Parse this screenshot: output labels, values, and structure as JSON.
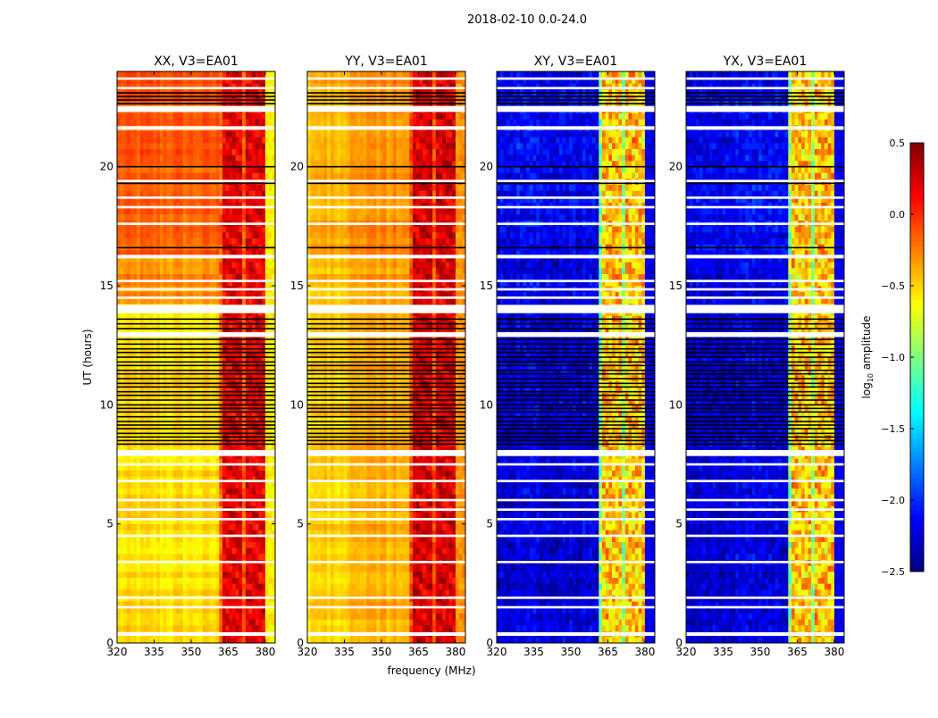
{
  "chart_data": {
    "type": "heatmap",
    "title": "2018-02-10 0.0-24.0",
    "xlabel": "frequency (MHz)",
    "ylabel": "UT (hours)",
    "xlim": [
      320,
      384
    ],
    "ylim": [
      0,
      24
    ],
    "xticks": [
      "320",
      "335",
      "350",
      "365",
      "380"
    ],
    "xtick_values": [
      320,
      335,
      350,
      365,
      380
    ],
    "yticks": [
      "0",
      "5",
      "10",
      "15",
      "20"
    ],
    "ytick_values": [
      0,
      5,
      10,
      15,
      20
    ],
    "colorbar": {
      "label": "log",
      "label_sub": "10",
      "label_rest": " amplitude",
      "colormap": "jet",
      "range": [
        -2.5,
        0.5
      ],
      "ticks": [
        "0.5",
        "0.0",
        "−0.5",
        "−1.0",
        "−1.5",
        "−2.0",
        "−2.5"
      ],
      "tick_values": [
        0.5,
        0.0,
        -0.5,
        -1.0,
        -1.5,
        -2.0,
        -2.5
      ]
    },
    "flagged_white_hours": [
      [
        0.3,
        0.45
      ],
      [
        1.45,
        1.55
      ],
      [
        1.85,
        1.95
      ],
      [
        3.35,
        3.45
      ],
      [
        4.45,
        4.55
      ],
      [
        5.15,
        5.25
      ],
      [
        5.55,
        5.65
      ],
      [
        5.95,
        6.05
      ],
      [
        6.75,
        6.85
      ],
      [
        7.45,
        7.55
      ],
      [
        7.85,
        8.1
      ],
      [
        12.85,
        13.05
      ],
      [
        13.85,
        14.2
      ],
      [
        14.45,
        14.55
      ],
      [
        14.8,
        14.9
      ],
      [
        15.15,
        15.25
      ],
      [
        16.15,
        16.3
      ],
      [
        17.55,
        17.65
      ],
      [
        18.25,
        18.35
      ],
      [
        18.65,
        18.75
      ],
      [
        19.35,
        19.45
      ],
      [
        21.55,
        21.7
      ],
      [
        22.3,
        22.55
      ],
      [
        23.25,
        23.35
      ],
      [
        23.65,
        23.75
      ]
    ],
    "flagged_black_hours": [
      8.35,
      8.5,
      8.65,
      8.8,
      9.0,
      9.15,
      9.3,
      9.5,
      9.7,
      9.85,
      10.0,
      10.2,
      10.4,
      10.55,
      10.75,
      10.9,
      11.1,
      11.3,
      11.45,
      11.65,
      11.8,
      12.0,
      12.2,
      12.35,
      12.55,
      12.75,
      13.2,
      13.4,
      13.6,
      16.6,
      19.3,
      20.0,
      22.65,
      22.8,
      22.95,
      23.1
    ],
    "panels": [
      {
        "title": "XX, V3=EA01",
        "low_band": [
          -0.55,
          -0.3,
          -0.15
        ],
        "high_band": 0.2,
        "edge": -0.6
      },
      {
        "title": "YY, V3=EA01",
        "low_band": [
          -0.35,
          -0.3,
          -0.25
        ],
        "high_band": 0.25,
        "edge": -0.3
      },
      {
        "title": "XY, V3=EA01",
        "low_band": [
          -2.25,
          -2.2,
          -2.15
        ],
        "high_band": -0.45,
        "edge": -2.2
      },
      {
        "title": "YX, V3=EA01",
        "low_band": [
          -2.25,
          -2.2,
          -2.15
        ],
        "high_band": -0.45,
        "edge": -2.2
      }
    ],
    "segments_hours": [
      [
        0,
        14.2
      ],
      [
        14.2,
        16.2
      ],
      [
        16.2,
        24
      ]
    ],
    "high_band_mhz": [
      362,
      380
    ]
  }
}
